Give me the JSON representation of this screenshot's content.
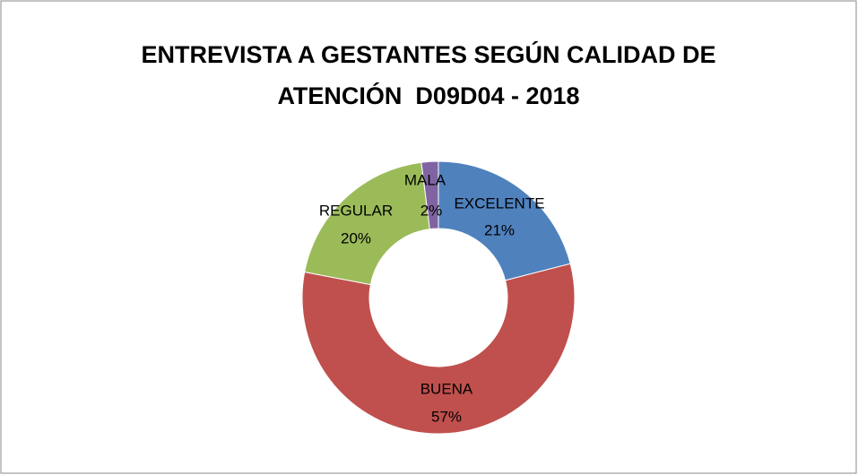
{
  "chart_data": {
    "type": "donut",
    "title": "ENTREVISTA A GESTANTES SEGÚN CALIDAD DE ATENCIÓN  D09D04 - 2018",
    "categories": [
      "EXCELENTE",
      "BUENA",
      "REGULAR",
      "MALA"
    ],
    "values": [
      21,
      57,
      20,
      2
    ],
    "value_labels": [
      "21%",
      "57%",
      "20%",
      "2%"
    ],
    "colors": [
      "#4f81bd",
      "#c0504d",
      "#9bbb59",
      "#8064a2"
    ]
  }
}
